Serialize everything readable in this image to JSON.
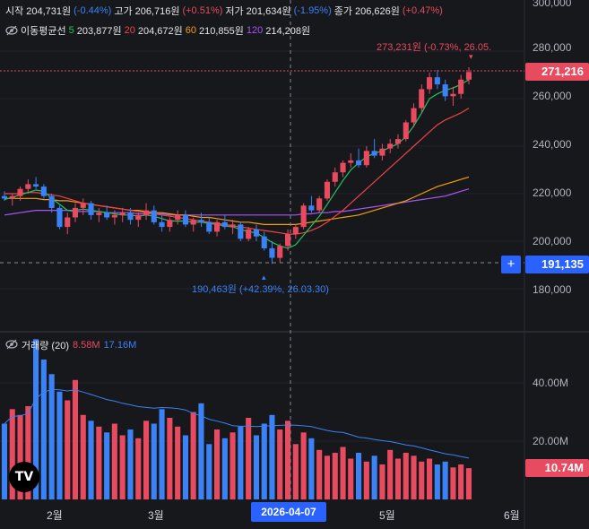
{
  "legend": {
    "open_label": "시작",
    "open_value": "204,731원",
    "open_change": "(-0.44%)",
    "high_label": "고가",
    "high_value": "206,716원",
    "high_change": "(+0.51%)",
    "low_label": "저가",
    "low_value": "201,634원",
    "low_change": "(-1.95%)",
    "close_label": "종가",
    "close_value": "206,626원",
    "close_change": "(+0.47%)"
  },
  "ma_legend": {
    "title": "이동평균선",
    "items": [
      {
        "period": "5",
        "value": "203,877원",
        "color": "#22c55e"
      },
      {
        "period": "20",
        "value": "204,672원",
        "color": "#ef4444"
      },
      {
        "period": "60",
        "value": "210,855원",
        "color": "#f59e0b"
      },
      {
        "period": "120",
        "value": "214,208원",
        "color": "#a855f7"
      }
    ]
  },
  "price_axis": {
    "ticks": [
      "300,000",
      "280,000",
      "260,000",
      "240,000",
      "220,000",
      "200,000",
      "180,000"
    ],
    "current_price": "271,216",
    "crosshair_price": "191,135"
  },
  "annotations": {
    "high": "273,231원 (-0.73%, 26.05.",
    "low": "190,463원 (+42.39%, 26.03.30)"
  },
  "volume": {
    "title": "거래량 (20)",
    "value1": "8.58M",
    "value2": "17.16M",
    "ticks": [
      "40.00M",
      "20.00M"
    ],
    "current": "10.74M"
  },
  "time_axis": {
    "labels": [
      "2월",
      "3월",
      "5월",
      "6월"
    ],
    "crosshair_date": "2026-04-07"
  },
  "logo_text": "TV",
  "colors": {
    "up": "#e84a5f",
    "down": "#3b82f6",
    "background": "#17181c"
  },
  "chart_data": {
    "type": "candlestick",
    "price_ylim": [
      170000,
      300000
    ],
    "volume_ylim": [
      0,
      55
    ],
    "volume_unit": "M",
    "candles": [
      [
        219000,
        221000,
        217000,
        218000
      ],
      [
        218000,
        220000,
        215000,
        219000
      ],
      [
        219000,
        223000,
        217000,
        222000
      ],
      [
        222000,
        226000,
        220000,
        224000
      ],
      [
        224000,
        227000,
        222000,
        223000
      ],
      [
        223000,
        224000,
        218000,
        219000
      ],
      [
        219000,
        220000,
        212000,
        214000
      ],
      [
        214000,
        215000,
        205000,
        206000
      ],
      [
        206000,
        212000,
        203000,
        210000
      ],
      [
        210000,
        216000,
        208000,
        214000
      ],
      [
        214000,
        218000,
        211000,
        216000
      ],
      [
        216000,
        217000,
        209000,
        211000
      ],
      [
        211000,
        214000,
        208000,
        212000
      ],
      [
        212000,
        215000,
        209000,
        210000
      ],
      [
        210000,
        213000,
        207000,
        211000
      ],
      [
        211000,
        214000,
        208000,
        212000
      ],
      [
        212000,
        214000,
        207000,
        209000
      ],
      [
        209000,
        212000,
        206000,
        211000
      ],
      [
        211000,
        216000,
        209000,
        213000
      ],
      [
        213000,
        215000,
        207000,
        208000
      ],
      [
        208000,
        211000,
        204000,
        206000
      ],
      [
        206000,
        210000,
        204000,
        209000
      ],
      [
        209000,
        213000,
        207000,
        211000
      ],
      [
        211000,
        213000,
        206000,
        207000
      ],
      [
        207000,
        210000,
        204000,
        209000
      ],
      [
        209000,
        212000,
        206000,
        208000
      ],
      [
        208000,
        210000,
        203000,
        204000
      ],
      [
        204000,
        209000,
        202000,
        208000
      ],
      [
        208000,
        211000,
        205000,
        206000
      ],
      [
        206000,
        209000,
        203000,
        207000
      ],
      [
        207000,
        208000,
        200000,
        201000
      ],
      [
        201000,
        206000,
        200000,
        205000
      ],
      [
        205000,
        207000,
        200000,
        202000
      ],
      [
        202000,
        204000,
        196000,
        197000
      ],
      [
        197000,
        200000,
        190463,
        193000
      ],
      [
        193000,
        199000,
        191000,
        198000
      ],
      [
        198000,
        205000,
        196000,
        203000
      ],
      [
        203000,
        207000,
        201000,
        206000
      ],
      [
        206000,
        216000,
        205000,
        215000
      ],
      [
        215000,
        219000,
        212000,
        213000
      ],
      [
        213000,
        219000,
        212000,
        218000
      ],
      [
        218000,
        226000,
        217000,
        225000
      ],
      [
        225000,
        231000,
        223000,
        229000
      ],
      [
        229000,
        234000,
        227000,
        233000
      ],
      [
        233000,
        237000,
        231000,
        234000
      ],
      [
        234000,
        239000,
        231000,
        232000
      ],
      [
        232000,
        240000,
        231000,
        238000
      ],
      [
        238000,
        243000,
        235000,
        236000
      ],
      [
        236000,
        241000,
        234000,
        239000
      ],
      [
        239000,
        243000,
        237000,
        241000
      ],
      [
        241000,
        245000,
        239000,
        243000
      ],
      [
        243000,
        251000,
        242000,
        250000
      ],
      [
        250000,
        258000,
        248000,
        256000
      ],
      [
        256000,
        266000,
        254000,
        264000
      ],
      [
        264000,
        271000,
        262000,
        269000
      ],
      [
        269000,
        272000,
        264000,
        266000
      ],
      [
        266000,
        268000,
        259000,
        261000
      ],
      [
        261000,
        265000,
        257000,
        262000
      ],
      [
        262000,
        270000,
        260000,
        268000
      ],
      [
        268000,
        273231,
        266000,
        271216
      ]
    ],
    "volumes": [
      26,
      31,
      29,
      32,
      55,
      48,
      43,
      37,
      34,
      41,
      29,
      27,
      25,
      23,
      26,
      22,
      24,
      21,
      27,
      26,
      31,
      28,
      25,
      22,
      30,
      33,
      19,
      24,
      21,
      23,
      25,
      28,
      22,
      26,
      29,
      24,
      27,
      19,
      23,
      21,
      17,
      15,
      16,
      18,
      14,
      16,
      13,
      15,
      12,
      17,
      14,
      16,
      15,
      13,
      14,
      12,
      13,
      11,
      12,
      10.74
    ],
    "ma5": [
      217500,
      218500,
      219500,
      220500,
      221500,
      221000,
      218000,
      215500,
      213000,
      213000,
      213500,
      213000,
      212500,
      212000,
      211500,
      211000,
      211000,
      210500,
      211000,
      210500,
      209500,
      208500,
      208500,
      208500,
      208000,
      208000,
      207500,
      207000,
      206500,
      206000,
      205000,
      204000,
      203500,
      201500,
      199500,
      198000,
      197000,
      198500,
      202500,
      206500,
      210500,
      215500,
      220500,
      225500,
      230000,
      233000,
      235500,
      237000,
      238000,
      239500,
      241000,
      244000,
      248500,
      254000,
      260000,
      262000,
      263500,
      264500,
      266000,
      268000
    ],
    "ma20": [
      220000,
      220000,
      220000,
      220500,
      220500,
      220000,
      219500,
      219000,
      218000,
      217000,
      216000,
      215500,
      215000,
      214500,
      214000,
      213500,
      213000,
      212500,
      212000,
      211500,
      211000,
      210500,
      210000,
      209500,
      209000,
      208500,
      208000,
      207500,
      207000,
      206500,
      206000,
      205500,
      205000,
      204500,
      204000,
      203500,
      203000,
      203000,
      203500,
      204500,
      206000,
      208000,
      210500,
      213000,
      216000,
      219000,
      222000,
      225000,
      228000,
      231000,
      234000,
      237000,
      240000,
      243000,
      246000,
      249000,
      251000,
      252500,
      254000,
      256000
    ],
    "ma60": [
      218000,
      218000,
      218000,
      218000,
      218000,
      217500,
      217500,
      217000,
      217000,
      216500,
      216000,
      215500,
      215000,
      214500,
      214000,
      213500,
      213000,
      213000,
      212500,
      212000,
      212000,
      211500,
      211000,
      211000,
      210500,
      210000,
      210000,
      209500,
      209000,
      208500,
      208000,
      208000,
      207500,
      207000,
      207000,
      207000,
      207000,
      207000,
      207500,
      208000,
      208500,
      209000,
      209500,
      210000,
      210500,
      211000,
      212000,
      213000,
      214000,
      215000,
      216000,
      217000,
      218500,
      220000,
      221500,
      223000,
      224000,
      225000,
      226000,
      227000
    ],
    "ma120": [
      211000,
      211500,
      212000,
      212500,
      213000,
      213000,
      213000,
      213000,
      213000,
      212500,
      212500,
      212500,
      212500,
      212000,
      212000,
      212000,
      212000,
      211500,
      211500,
      211500,
      211500,
      211000,
      211000,
      211000,
      211000,
      211000,
      211000,
      211000,
      211000,
      211000,
      211000,
      211000,
      211000,
      211000,
      211000,
      211000,
      211000,
      211000,
      211500,
      211500,
      212000,
      212000,
      212500,
      212500,
      213000,
      213500,
      214000,
      214500,
      215000,
      215500,
      216000,
      216500,
      217000,
      217500,
      218000,
      218500,
      219000,
      220000,
      221000,
      222000
    ]
  }
}
